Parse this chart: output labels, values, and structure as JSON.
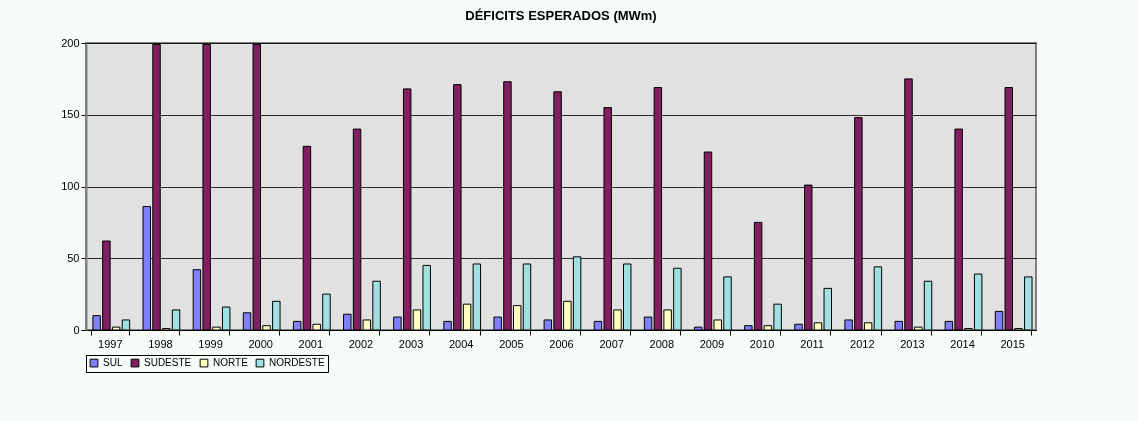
{
  "chart_data": {
    "type": "bar",
    "title": "DÉFICITS ESPERADOS (MWm)",
    "categories": [
      "1997",
      "1998",
      "1999",
      "2000",
      "2001",
      "2002",
      "2003",
      "2004",
      "2005",
      "2006",
      "2007",
      "2008",
      "2009",
      "2010",
      "2011",
      "2012",
      "2013",
      "2014",
      "2015"
    ],
    "series": [
      {
        "name": "SUL",
        "color": "#8080ff",
        "values": [
          10,
          86,
          42,
          12,
          6,
          11,
          9,
          6,
          9,
          7,
          6,
          9,
          2,
          3,
          4,
          7,
          6,
          6,
          13
        ]
      },
      {
        "name": "SUDESTE",
        "color": "#802060",
        "values": [
          62,
          199,
          199,
          199,
          128,
          140,
          168,
          171,
          173,
          166,
          155,
          169,
          124,
          75,
          101,
          148,
          175,
          140,
          169
        ]
      },
      {
        "name": "NORTE",
        "color": "#ffffc0",
        "values": [
          2,
          1,
          2,
          3,
          4,
          7,
          14,
          18,
          17,
          20,
          14,
          14,
          7,
          3,
          5,
          5,
          2,
          1,
          1
        ]
      },
      {
        "name": "NORDESTE",
        "color": "#a0e0e0",
        "values": [
          7,
          14,
          16,
          20,
          25,
          34,
          45,
          46,
          46,
          51,
          46,
          43,
          37,
          18,
          29,
          44,
          34,
          39,
          37
        ]
      }
    ],
    "ylim": [
      0,
      200
    ],
    "yticks": [
      0,
      50,
      100,
      150,
      200
    ],
    "grid": "y",
    "legend": "bottom"
  }
}
